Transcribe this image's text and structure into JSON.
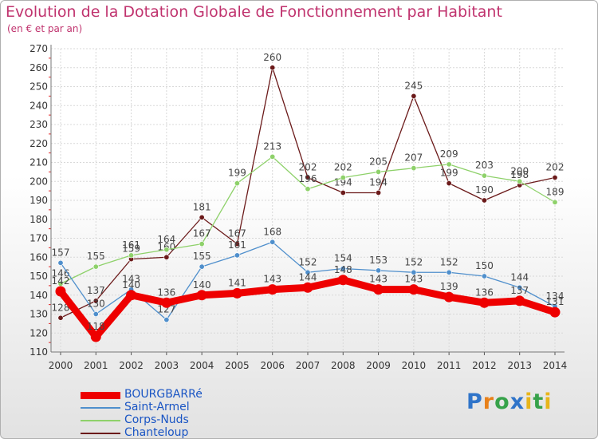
{
  "title": "Evolution de la Dotation Globale de Fonctionnement par Habitant",
  "subtitle": "(en € et par an)",
  "logo_text": "Proxiti",
  "chart_data": {
    "type": "line",
    "title": "Evolution de la Dotation Globale de Fonctionnement par Habitant",
    "subtitle": "(en € et par an)",
    "x": [
      "2000",
      "2001",
      "2002",
      "2003",
      "2004",
      "2005",
      "2006",
      "2007",
      "2008",
      "2009",
      "2010",
      "2011",
      "2012",
      "2013",
      "2014"
    ],
    "ylim": [
      110,
      270
    ],
    "ytick_step": 10,
    "grid": true,
    "legend_position": "bottom-left",
    "series": [
      {
        "name": "BOURGBARRé",
        "color": "#ee0000",
        "values": [
          142,
          118,
          140,
          136,
          140,
          141,
          143,
          144,
          148,
          143,
          143,
          139,
          136,
          137,
          131
        ],
        "show_labels": true
      },
      {
        "name": "Saint-Armel",
        "color": "#4f8fcc",
        "values": [
          157,
          130,
          143,
          127,
          155,
          161,
          168,
          152,
          154,
          153,
          152,
          152,
          150,
          144,
          134
        ],
        "show_labels": true
      },
      {
        "name": "Corps-Nuds",
        "color": "#8ed16a",
        "values": [
          146,
          155,
          161,
          164,
          167,
          199,
          213,
          196,
          202,
          205,
          207,
          209,
          203,
          200,
          189
        ],
        "show_labels": true
      },
      {
        "name": "Chanteloup",
        "color": "#6b1a1a",
        "values": [
          128,
          137,
          159,
          160,
          181,
          167,
          260,
          202,
          194,
          194,
          245,
          199,
          190,
          198,
          202
        ],
        "show_labels": true
      }
    ]
  }
}
